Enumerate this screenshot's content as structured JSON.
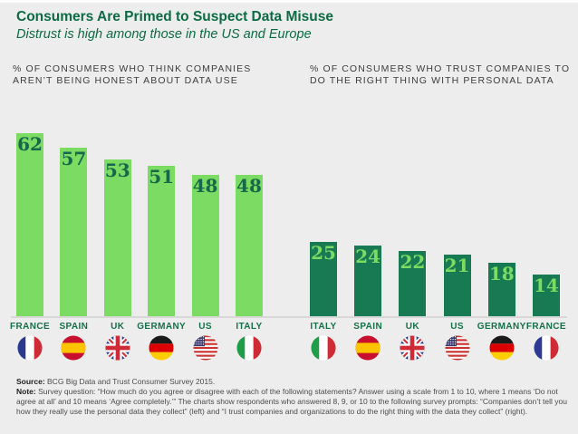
{
  "header": {
    "title": "Consumers Are Primed to Suspect Data Misuse",
    "subtitle": "Distrust is high among those in the US and Europe"
  },
  "colors": {
    "background": "#ECEDEC",
    "title_green": "#0C6B45",
    "light_green_bar": "#7BDB62",
    "dark_green_bar": "#187A52",
    "value_on_light": "#17684A",
    "value_on_dark": "#7BDB62",
    "country_label_green": "#14714A",
    "panel_header_gray": "#3D3D3D",
    "baseline_gray": "#D8D8D8"
  },
  "chart_data": {
    "type": "bar",
    "unit": "%",
    "grid": false,
    "axes_visible": false,
    "value_labels": "inside-top",
    "ylim": [
      0,
      65
    ],
    "charts": [
      {
        "title": "% OF CONSUMERS WHO THINK COMPANIES\nAREN’T BEING HONEST ABOUT DATA USE",
        "bar_color": "light-green",
        "categories": [
          "FRANCE",
          "SPAIN",
          "UK",
          "GERMANY",
          "US",
          "ITALY"
        ],
        "values": [
          62,
          57,
          53,
          51,
          48,
          48
        ],
        "flags": [
          "france",
          "spain",
          "uk",
          "germany",
          "us",
          "italy"
        ]
      },
      {
        "title": "% OF CONSUMERS WHO TRUST COMPANIES TO\nDO THE RIGHT THING WITH PERSONAL DATA",
        "bar_color": "dark-green",
        "categories": [
          "ITALY",
          "SPAIN",
          "UK",
          "US",
          "GERMANY",
          "FRANCE"
        ],
        "values": [
          25,
          24,
          22,
          21,
          18,
          14
        ],
        "flags": [
          "italy",
          "spain",
          "uk",
          "us",
          "germany",
          "france"
        ]
      }
    ]
  },
  "footer": {
    "source_label": "Source:",
    "source_text": " BCG Big Data and Trust Consumer Survey 2015.",
    "note_label": "Note:",
    "note_text": " Survey question: “How much do you agree or disagree with each of the following statements? Answer using a scale from 1 to 10, where 1 means ‘Do not agree at all’ and 10 means ‘Agree completely.’” The charts show respondents who answered 8, 9, or 10 to the following survey prompts: “Companies don’t tell you how they really use the personal data they collect” (left) and “I trust companies and organizations to do the right thing with the data they collect” (right)."
  }
}
